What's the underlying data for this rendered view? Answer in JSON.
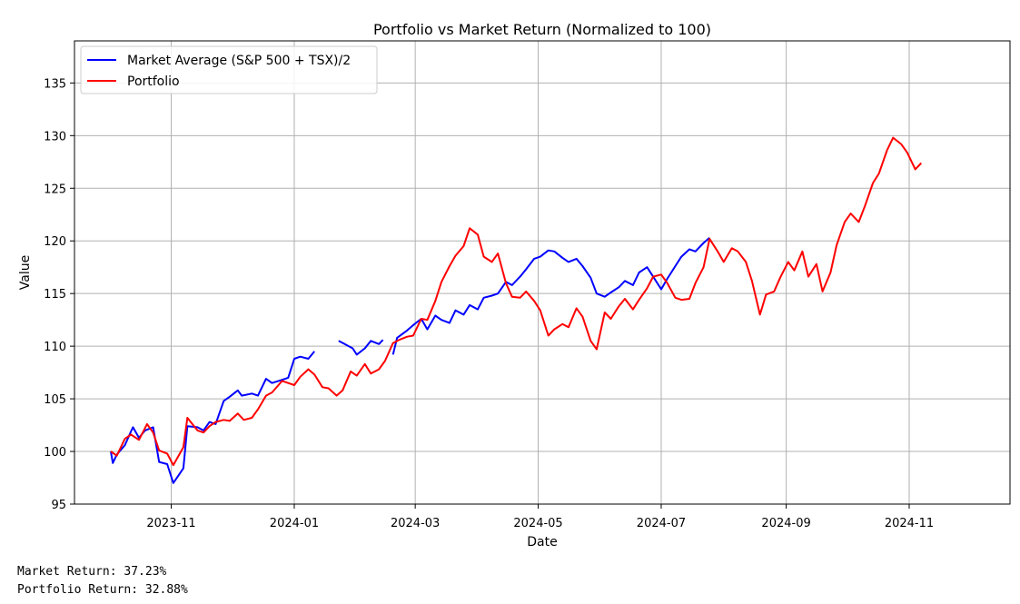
{
  "chart_data": {
    "type": "line",
    "title": "Portfolio vs Market Return (Normalized to 100)",
    "xlabel": "Date",
    "ylabel": "Value",
    "xlim": [
      "2023-09-14",
      "2024-12-21"
    ],
    "ylim": [
      95,
      139
    ],
    "yticks": [
      95,
      100,
      105,
      110,
      115,
      120,
      125,
      130,
      135
    ],
    "xticks": [
      {
        "date": "2023-11-01",
        "label": "2023-11"
      },
      {
        "date": "2024-01-01",
        "label": "2024-01"
      },
      {
        "date": "2024-03-01",
        "label": "2024-03"
      },
      {
        "date": "2024-05-01",
        "label": "2024-05"
      },
      {
        "date": "2024-07-01",
        "label": "2024-07"
      },
      {
        "date": "2024-09-01",
        "label": "2024-09"
      },
      {
        "date": "2024-11-01",
        "label": "2024-11"
      }
    ],
    "grid": true,
    "legend_position": "top-left",
    "series": [
      {
        "name": "Market Average (S&P 500 + TSX)/2",
        "color": "#0000ff",
        "segments": [
          [
            [
              "2023-10-02",
              100.0
            ],
            [
              "2023-10-03",
              98.9
            ],
            [
              "2023-10-05",
              99.7
            ],
            [
              "2023-10-09",
              100.6
            ],
            [
              "2023-10-12",
              101.9
            ],
            [
              "2023-10-13",
              102.3
            ],
            [
              "2023-10-16",
              101.3
            ],
            [
              "2023-10-19",
              102.0
            ],
            [
              "2023-10-23",
              102.3
            ],
            [
              "2023-10-26",
              99.0
            ],
            [
              "2023-10-30",
              98.8
            ],
            [
              "2023-11-02",
              97.0
            ],
            [
              "2023-11-07",
              98.4
            ],
            [
              "2023-11-09",
              102.4
            ],
            [
              "2023-11-14",
              102.3
            ],
            [
              "2023-11-17",
              102.0
            ],
            [
              "2023-11-20",
              102.8
            ],
            [
              "2023-11-23",
              102.6
            ],
            [
              "2023-11-27",
              104.8
            ],
            [
              "2023-11-30",
              105.2
            ],
            [
              "2023-12-04",
              105.8
            ],
            [
              "2023-12-06",
              105.3
            ],
            [
              "2023-12-11",
              105.5
            ],
            [
              "2023-12-14",
              105.3
            ],
            [
              "2023-12-18",
              106.9
            ],
            [
              "2023-12-21",
              106.5
            ],
            [
              "2023-12-26",
              106.8
            ],
            [
              "2023-12-29",
              107.0
            ],
            [
              "2024-01-01",
              108.8
            ],
            [
              "2024-01-04",
              109.0
            ],
            [
              "2024-01-08",
              108.8
            ],
            [
              "2024-01-11",
              109.5
            ]
          ],
          [
            [
              "2024-01-23",
              110.5
            ],
            [
              "2024-01-26",
              110.2
            ],
            [
              "2024-01-30",
              109.8
            ],
            [
              "2024-02-01",
              109.2
            ],
            [
              "2024-02-05",
              109.8
            ],
            [
              "2024-02-08",
              110.5
            ],
            [
              "2024-02-12",
              110.2
            ],
            [
              "2024-02-14",
              110.6
            ]
          ],
          [
            [
              "2024-02-19",
              109.2
            ],
            [
              "2024-02-21",
              110.8
            ],
            [
              "2024-02-26",
              111.5
            ],
            [
              "2024-02-29",
              112.0
            ],
            [
              "2024-03-04",
              112.6
            ],
            [
              "2024-03-07",
              111.6
            ],
            [
              "2024-03-11",
              112.9
            ],
            [
              "2024-03-14",
              112.5
            ],
            [
              "2024-03-18",
              112.2
            ],
            [
              "2024-03-21",
              113.4
            ],
            [
              "2024-03-25",
              113.0
            ],
            [
              "2024-03-28",
              113.9
            ],
            [
              "2024-04-01",
              113.5
            ],
            [
              "2024-04-04",
              114.6
            ],
            [
              "2024-04-08",
              114.8
            ],
            [
              "2024-04-11",
              115.0
            ],
            [
              "2024-04-15",
              116.1
            ],
            [
              "2024-04-18",
              115.8
            ],
            [
              "2024-04-22",
              116.6
            ],
            [
              "2024-04-25",
              117.3
            ],
            [
              "2024-04-29",
              118.3
            ],
            [
              "2024-05-02",
              118.5
            ],
            [
              "2024-05-06",
              119.1
            ],
            [
              "2024-05-09",
              119.0
            ],
            [
              "2024-05-13",
              118.4
            ],
            [
              "2024-05-16",
              118.0
            ],
            [
              "2024-05-20",
              118.3
            ],
            [
              "2024-05-23",
              117.6
            ],
            [
              "2024-05-27",
              116.5
            ],
            [
              "2024-05-30",
              115.0
            ],
            [
              "2024-06-03",
              114.7
            ],
            [
              "2024-06-06",
              115.1
            ],
            [
              "2024-06-10",
              115.6
            ],
            [
              "2024-06-13",
              116.2
            ],
            [
              "2024-06-17",
              115.8
            ],
            [
              "2024-06-20",
              117.0
            ],
            [
              "2024-06-24",
              117.5
            ],
            [
              "2024-06-27",
              116.6
            ],
            [
              "2024-07-01",
              115.4
            ],
            [
              "2024-07-04",
              116.4
            ],
            [
              "2024-07-08",
              117.6
            ],
            [
              "2024-07-11",
              118.5
            ],
            [
              "2024-07-15",
              119.2
            ],
            [
              "2024-07-18",
              119.0
            ],
            [
              "2024-07-22",
              119.8
            ],
            [
              "2024-07-25",
              120.3
            ]
          ]
        ]
      },
      {
        "name": "Portfolio",
        "color": "#ff0000",
        "segments": [
          [
            [
              "2023-10-02",
              100.0
            ],
            [
              "2023-10-05",
              99.6
            ],
            [
              "2023-10-09",
              101.2
            ],
            [
              "2023-10-12",
              101.6
            ],
            [
              "2023-10-16",
              101.1
            ],
            [
              "2023-10-20",
              102.6
            ],
            [
              "2023-10-23",
              101.8
            ],
            [
              "2023-10-26",
              100.1
            ],
            [
              "2023-10-30",
              99.8
            ],
            [
              "2023-11-02",
              98.7
            ],
            [
              "2023-11-07",
              100.4
            ],
            [
              "2023-11-09",
              103.2
            ],
            [
              "2023-11-14",
              102.0
            ],
            [
              "2023-11-17",
              101.8
            ],
            [
              "2023-11-20",
              102.4
            ],
            [
              "2023-11-23",
              102.8
            ],
            [
              "2023-11-27",
              103.0
            ],
            [
              "2023-11-30",
              102.9
            ],
            [
              "2023-12-04",
              103.6
            ],
            [
              "2023-12-07",
              103.0
            ],
            [
              "2023-12-11",
              103.2
            ],
            [
              "2023-12-14",
              104.0
            ],
            [
              "2023-12-18",
              105.3
            ],
            [
              "2023-12-21",
              105.6
            ],
            [
              "2023-12-26",
              106.7
            ],
            [
              "2023-12-29",
              106.5
            ],
            [
              "2024-01-01",
              106.3
            ],
            [
              "2024-01-04",
              107.1
            ],
            [
              "2024-01-08",
              107.8
            ],
            [
              "2024-01-11",
              107.3
            ],
            [
              "2024-01-15",
              106.1
            ],
            [
              "2024-01-18",
              106.0
            ],
            [
              "2024-01-22",
              105.3
            ],
            [
              "2024-01-25",
              105.8
            ],
            [
              "2024-01-29",
              107.6
            ],
            [
              "2024-02-01",
              107.2
            ],
            [
              "2024-02-05",
              108.3
            ],
            [
              "2024-02-08",
              107.4
            ],
            [
              "2024-02-12",
              107.8
            ],
            [
              "2024-02-15",
              108.6
            ],
            [
              "2024-02-19",
              110.3
            ],
            [
              "2024-02-22",
              110.6
            ],
            [
              "2024-02-26",
              110.9
            ],
            [
              "2024-02-29",
              111.0
            ],
            [
              "2024-03-04",
              112.6
            ],
            [
              "2024-03-07",
              112.5
            ],
            [
              "2024-03-11",
              114.3
            ],
            [
              "2024-03-14",
              116.1
            ],
            [
              "2024-03-18",
              117.6
            ],
            [
              "2024-03-21",
              118.6
            ],
            [
              "2024-03-25",
              119.5
            ],
            [
              "2024-03-28",
              121.2
            ],
            [
              "2024-04-01",
              120.6
            ],
            [
              "2024-04-04",
              118.5
            ],
            [
              "2024-04-08",
              118.0
            ],
            [
              "2024-04-11",
              118.8
            ],
            [
              "2024-04-15",
              116.0
            ],
            [
              "2024-04-18",
              114.7
            ],
            [
              "2024-04-22",
              114.6
            ],
            [
              "2024-04-25",
              115.2
            ],
            [
              "2024-04-29",
              114.3
            ],
            [
              "2024-05-02",
              113.4
            ],
            [
              "2024-05-06",
              111.0
            ],
            [
              "2024-05-09",
              111.6
            ],
            [
              "2024-05-13",
              112.1
            ],
            [
              "2024-05-16",
              111.8
            ],
            [
              "2024-05-20",
              113.6
            ],
            [
              "2024-05-23",
              112.8
            ],
            [
              "2024-05-27",
              110.5
            ],
            [
              "2024-05-30",
              109.7
            ],
            [
              "2024-06-03",
              113.2
            ],
            [
              "2024-06-06",
              112.6
            ],
            [
              "2024-06-10",
              113.8
            ],
            [
              "2024-06-13",
              114.5
            ],
            [
              "2024-06-17",
              113.5
            ],
            [
              "2024-06-20",
              114.4
            ],
            [
              "2024-06-24",
              115.5
            ],
            [
              "2024-06-27",
              116.6
            ],
            [
              "2024-07-01",
              116.8
            ],
            [
              "2024-07-04",
              116.0
            ],
            [
              "2024-07-08",
              114.6
            ],
            [
              "2024-07-11",
              114.4
            ],
            [
              "2024-07-15",
              114.5
            ],
            [
              "2024-07-18",
              116.0
            ],
            [
              "2024-07-22",
              117.5
            ],
            [
              "2024-07-25",
              120.2
            ],
            [
              "2024-07-29",
              119.0
            ],
            [
              "2024-08-01",
              118.0
            ],
            [
              "2024-08-05",
              119.3
            ],
            [
              "2024-08-08",
              119.0
            ],
            [
              "2024-08-12",
              118.0
            ],
            [
              "2024-08-15",
              116.2
            ],
            [
              "2024-08-19",
              113.0
            ],
            [
              "2024-08-22",
              114.9
            ],
            [
              "2024-08-26",
              115.2
            ],
            [
              "2024-08-29",
              116.5
            ],
            [
              "2024-09-02",
              118.0
            ],
            [
              "2024-09-05",
              117.2
            ],
            [
              "2024-09-09",
              119.0
            ],
            [
              "2024-09-12",
              116.6
            ],
            [
              "2024-09-16",
              117.8
            ],
            [
              "2024-09-19",
              115.2
            ],
            [
              "2024-09-23",
              117.0
            ],
            [
              "2024-09-26",
              119.6
            ],
            [
              "2024-09-30",
              121.8
            ],
            [
              "2024-10-03",
              122.6
            ],
            [
              "2024-10-07",
              121.8
            ],
            [
              "2024-10-10",
              123.3
            ],
            [
              "2024-10-14",
              125.5
            ],
            [
              "2024-10-17",
              126.4
            ],
            [
              "2024-10-21",
              128.6
            ],
            [
              "2024-10-24",
              129.8
            ],
            [
              "2024-10-28",
              129.2
            ],
            [
              "2024-10-31",
              128.4
            ],
            [
              "2024-11-04",
              126.8
            ],
            [
              "2024-11-07",
              127.4
            ]
          ]
        ]
      }
    ]
  },
  "output_lines": [
    "Market Return: 37.23%",
    "Portfolio Return: 32.88%"
  ]
}
